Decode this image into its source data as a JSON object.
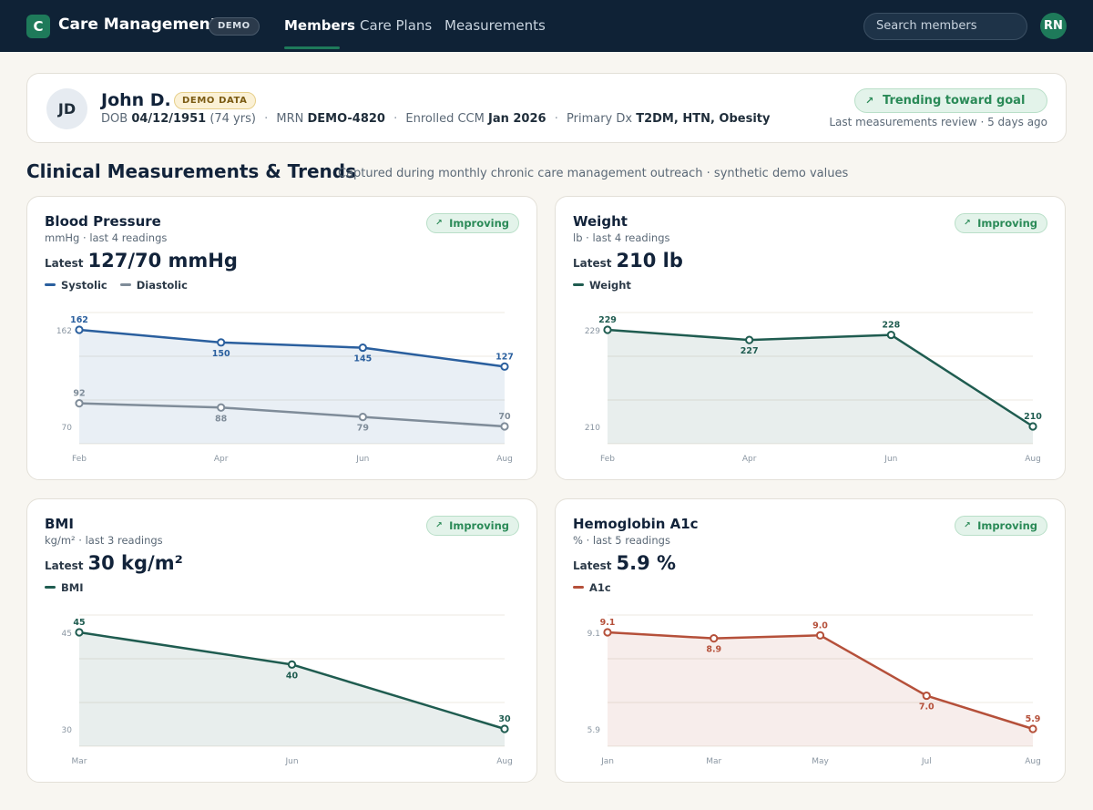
{
  "nav": {
    "logo_letter": "C",
    "app_title": "Care Management",
    "demo_badge": "DEMO",
    "items": [
      {
        "label": "Members",
        "active": true
      },
      {
        "label": "Care Plans",
        "active": false
      },
      {
        "label": "Measurements",
        "active": false
      }
    ],
    "search_placeholder": "Search members",
    "user_initials": "RN"
  },
  "patient": {
    "initials": "JD",
    "name": "John D.",
    "badge": "DEMO DATA",
    "dob_label": "DOB",
    "dob": "04/12/1951",
    "age": "(74 yrs)",
    "mrn_label": "MRN",
    "mrn": "DEMO-4820",
    "enrolled_label": "Enrolled CCM",
    "enrolled": "Jan 2026",
    "dx_label": "Primary Dx",
    "dx": "T2DM, HTN, Obesity",
    "trend_status": "Trending toward goal",
    "review_note": "Last measurements review · 5 days ago"
  },
  "section": {
    "title": "Clinical Measurements & Trends",
    "subtitle": "Captured during monthly chronic care management outreach · synthetic demo values"
  },
  "colors": {
    "nav_bg": "#0f2236",
    "accent_green": "#1e7a5a",
    "status_green": "#2a8a57",
    "systolic_blue": "#2a5f9e",
    "diastolic_gray": "#7f8c99",
    "weight_green": "#1f5c50",
    "a1c_red": "#b5503a"
  },
  "cards": [
    {
      "title": "Blood Pressure",
      "subtitle": "mmHg · last 4 readings",
      "status": "Improving",
      "latest_label": "Latest",
      "latest_value": "127/70 mmHg",
      "chart_data": {
        "type": "line",
        "x": [
          "Feb",
          "Apr",
          "Jun",
          "Aug"
        ],
        "y_ticks": [
          162,
          70
        ],
        "ylim": [
          70,
          162
        ],
        "fill_series": 0,
        "series": [
          {
            "name": "Systolic",
            "values": [
              162,
              150,
              145,
              127
            ],
            "color": "#2a5f9e"
          },
          {
            "name": "Diastolic",
            "values": [
              92,
              88,
              79,
              70
            ],
            "color": "#7f8c99"
          }
        ]
      }
    },
    {
      "title": "Weight",
      "subtitle": "lb · last 4 readings",
      "status": "Improving",
      "latest_label": "Latest",
      "latest_value": "210 lb",
      "chart_data": {
        "type": "area",
        "x": [
          "Feb",
          "Apr",
          "Jun",
          "Aug"
        ],
        "y_ticks": [
          229,
          210
        ],
        "ylim": [
          210,
          229
        ],
        "fill_series": 0,
        "series": [
          {
            "name": "Weight",
            "values": [
              229,
              227,
              228,
              210
            ],
            "color": "#1f5c50"
          }
        ]
      }
    },
    {
      "title": "BMI",
      "subtitle": "kg/m² · last 3 readings",
      "status": "Improving",
      "latest_label": "Latest",
      "latest_value": "30 kg/m²",
      "chart_data": {
        "type": "area",
        "x": [
          "Mar",
          "Jun",
          "Aug"
        ],
        "y_ticks": [
          45,
          30
        ],
        "ylim": [
          30,
          45
        ],
        "fill_series": 0,
        "series": [
          {
            "name": "BMI",
            "values": [
              45,
              40,
              30
            ],
            "color": "#1f5c50"
          }
        ]
      }
    },
    {
      "title": "Hemoglobin A1c",
      "subtitle": "% · last 5 readings",
      "status": "Improving",
      "latest_label": "Latest",
      "latest_value": "5.9 %",
      "chart_data": {
        "type": "area",
        "x": [
          "Jan",
          "Mar",
          "May",
          "Jul",
          "Aug"
        ],
        "y_ticks": [
          "9.1",
          "5.9"
        ],
        "ylim": [
          5.9,
          9.1
        ],
        "fill_series": 0,
        "series": [
          {
            "name": "A1c",
            "values": [
              9.1,
              8.9,
              9.0,
              7.0,
              5.9
            ],
            "labels": [
              "9.1",
              "8.9",
              "9.0",
              "7.0",
              "5.9"
            ],
            "color": "#b5503a"
          }
        ]
      }
    }
  ]
}
